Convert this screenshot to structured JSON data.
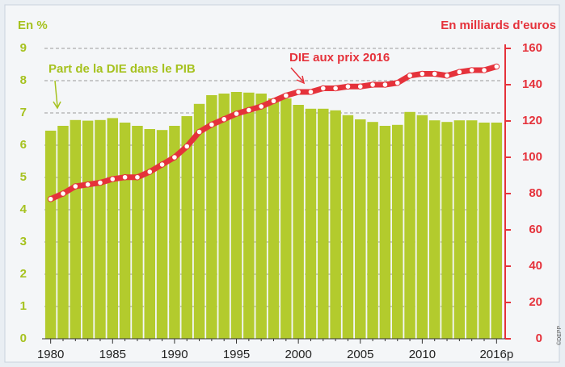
{
  "chart_data": {
    "type": "bar",
    "ylabel": "En %",
    "y2label": "En milliards d'euros",
    "source": "©DEPP",
    "categories": [
      "1980",
      null,
      null,
      null,
      null,
      "1985",
      null,
      null,
      null,
      null,
      "1990",
      null,
      null,
      null,
      null,
      "1995",
      null,
      null,
      null,
      null,
      "2000",
      null,
      null,
      null,
      null,
      "2005",
      null,
      null,
      null,
      null,
      "2010",
      null,
      null,
      null,
      null,
      null,
      "2016p"
    ],
    "series": [
      {
        "name": "Part de la DIE dans le PIB",
        "type": "bar",
        "color": "#b3cb2d",
        "values": [
          6.45,
          6.6,
          6.78,
          6.76,
          6.78,
          6.84,
          6.7,
          6.6,
          6.5,
          6.47,
          6.6,
          6.9,
          7.28,
          7.55,
          7.6,
          7.65,
          7.63,
          7.6,
          7.45,
          7.45,
          7.25,
          7.13,
          7.13,
          7.08,
          6.93,
          6.8,
          6.72,
          6.6,
          6.63,
          7.03,
          6.93,
          6.77,
          6.72,
          6.77,
          6.77,
          6.7,
          6.7
        ]
      },
      {
        "name": "DIE aux prix 2016",
        "type": "line",
        "axis": "y2",
        "color": "#e5323b",
        "values": [
          77,
          80,
          84,
          85,
          86,
          88,
          89,
          89,
          92,
          96,
          100,
          106,
          114,
          118,
          121,
          124,
          126,
          128,
          131,
          134,
          136,
          136,
          138,
          138,
          139,
          139,
          140,
          140,
          141,
          145,
          146,
          146,
          145,
          147,
          148,
          148,
          150
        ]
      }
    ],
    "ylim": [
      0,
      9
    ],
    "yticks": [
      0,
      1,
      2,
      3,
      4,
      5,
      6,
      7,
      8,
      9
    ],
    "y2lim": [
      0,
      160
    ],
    "y2ticks": [
      0,
      20,
      40,
      60,
      80,
      100,
      120,
      140,
      160
    ],
    "grid": true
  }
}
